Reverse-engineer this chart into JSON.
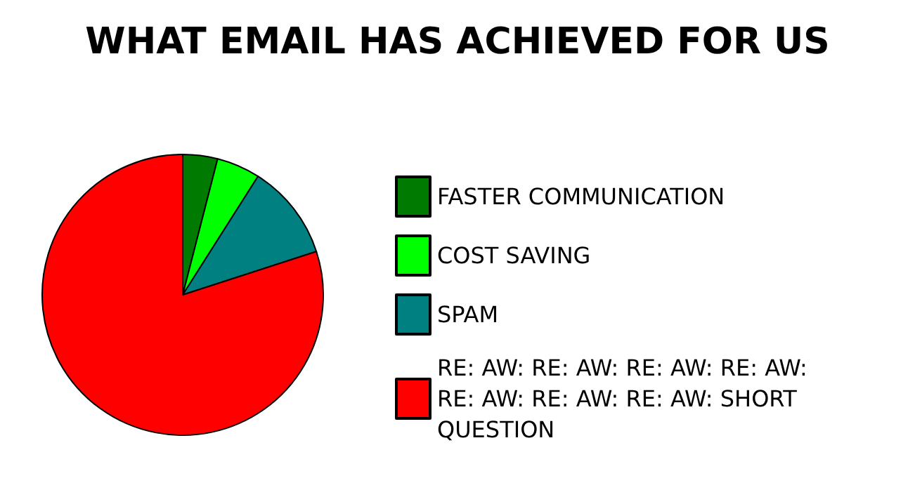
{
  "chart_data": {
    "type": "pie",
    "title": "WHAT EMAIL HAS ACHIEVED FOR US",
    "categories": [
      "FASTER COMMUNICATION",
      "COST SAVING",
      "SPAM",
      "RE: AW: RE: AW: RE: AW: RE: AW: RE: AW: RE: AW: RE: AW: SHORT QUESTION"
    ],
    "values": [
      4,
      5,
      11,
      80
    ],
    "colors": [
      "#007a00",
      "#00ff00",
      "#008080",
      "#ff0000"
    ],
    "legend": "right"
  }
}
